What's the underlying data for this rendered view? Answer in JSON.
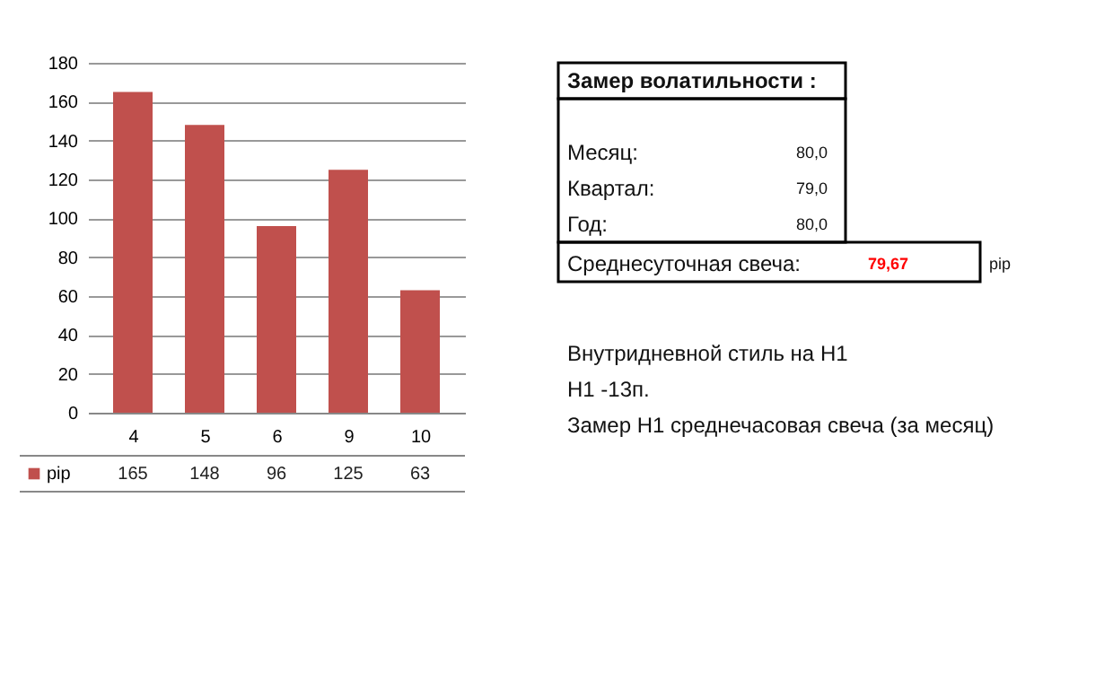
{
  "chart_data": [
    {
      "type": "bar",
      "categories": [
        "4",
        "5",
        "6",
        "9",
        "10"
      ],
      "series": [
        {
          "name": "pip",
          "color": "#c0504d",
          "values": [
            165,
            148,
            96,
            125,
            63
          ]
        }
      ],
      "ylim": [
        0,
        180
      ],
      "yticks": [
        0,
        20,
        40,
        60,
        80,
        100,
        120,
        140,
        160,
        180
      ],
      "grid": "y",
      "legend": "bottom",
      "data_labels": true
    },
    {
      "type": "other",
      "annotations": [
        "Замер  волатильности  :",
        "Месяц:",
        "80,0",
        "Квартал:",
        "79,0",
        "Год:",
        "80,0",
        "Среднесуточная свеча:",
        "79,67",
        "pip",
        "Внутридневной стиль на H1",
        "H1 -13п.",
        "Замер H1 среднечасовая свеча (за месяц)"
      ]
    }
  ]
}
